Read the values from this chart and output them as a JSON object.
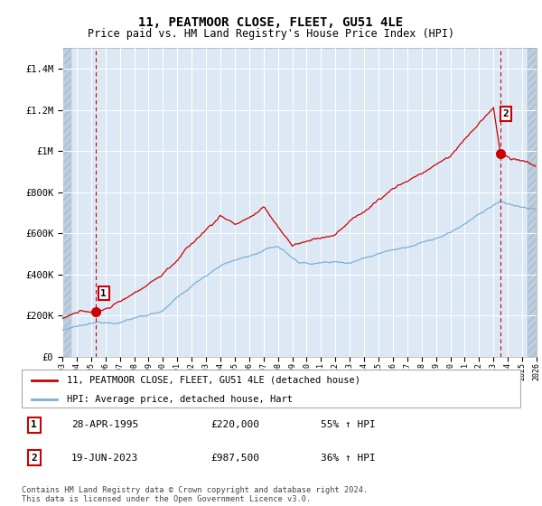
{
  "title": "11, PEATMOOR CLOSE, FLEET, GU51 4LE",
  "subtitle": "Price paid vs. HM Land Registry's House Price Index (HPI)",
  "ylim": [
    0,
    1500000
  ],
  "yticks": [
    0,
    200000,
    400000,
    600000,
    800000,
    1000000,
    1200000,
    1400000
  ],
  "ytick_labels": [
    "£0",
    "£200K",
    "£400K",
    "£600K",
    "£800K",
    "£1M",
    "£1.2M",
    "£1.4M"
  ],
  "bg_color": "#dce9f5",
  "hatch_color": "#bccfe0",
  "grid_color": "#ffffff",
  "sale1_x": 1995.32,
  "sale1_y": 220000,
  "sale2_x": 2023.46,
  "sale2_y": 987500,
  "legend_line1": "11, PEATMOOR CLOSE, FLEET, GU51 4LE (detached house)",
  "legend_line2": "HPI: Average price, detached house, Hart",
  "sale1_date": "28-APR-1995",
  "sale1_price": "£220,000",
  "sale1_hpi": "55% ↑ HPI",
  "sale2_date": "19-JUN-2023",
  "sale2_price": "£987,500",
  "sale2_hpi": "36% ↑ HPI",
  "footer": "Contains HM Land Registry data © Crown copyright and database right 2024.\nThis data is licensed under the Open Government Licence v3.0.",
  "red_color": "#cc0000",
  "blue_color": "#7ab0d4",
  "xmin": 1993,
  "xmax": 2026
}
